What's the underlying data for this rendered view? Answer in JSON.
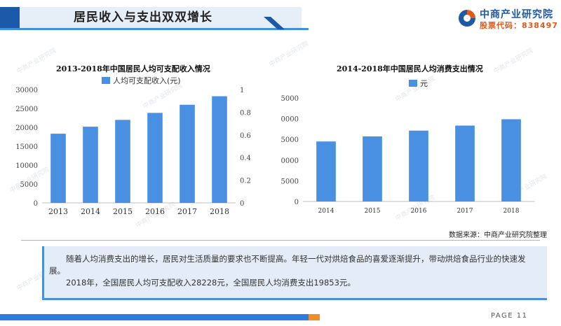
{
  "header": {
    "title": "居民收入与支出双双增长"
  },
  "logo": {
    "name": "中商产业研究院",
    "code": "股票代码：838497"
  },
  "watermark": "中商产业研究院",
  "colors": {
    "accent": "#1a5aa8",
    "bar": "#4a90e2",
    "code": "#e05a1c"
  },
  "chart_data": [
    {
      "type": "bar",
      "title": "2013-2018年中国居民人均可支配收入情况",
      "categories": [
        "2013",
        "2014",
        "2015",
        "2016",
        "2017",
        "2018"
      ],
      "series": [
        {
          "name": "人均可支配收入(元)",
          "values": [
            18311,
            20167,
            21966,
            23821,
            25974,
            28228
          ]
        }
      ],
      "ylim": [
        0,
        30000
      ],
      "yticks": [
        "0",
        "5000",
        "10000",
        "15000",
        "20000",
        "25000",
        "30000"
      ],
      "y2ticks": [
        "0",
        "0.2",
        "0.4",
        "0.6",
        "0.8",
        "1"
      ],
      "legend": "top"
    },
    {
      "type": "bar",
      "title": "2014-2018年中国居民人均消费支出情况",
      "categories": [
        "2014",
        "2015",
        "2016",
        "2017",
        "2018"
      ],
      "series": [
        {
          "name": "元",
          "values": [
            14491,
            15712,
            17111,
            18322,
            19853
          ]
        }
      ],
      "ylim": [
        0,
        25000
      ],
      "yticks": [
        "0",
        "5000",
        "10000",
        "15000",
        "20000",
        "25000"
      ],
      "legend": "top"
    }
  ],
  "source": "数据来源：中商产业研究院整理",
  "summary": {
    "p1": "随着人均消费支出的增长，居民对生活质量的要求也不断提高。年轻一代对烘焙食品的喜爱逐渐提升，带动烘焙食品行业的快速发展。",
    "p2": "2018年，全国居民人均可支配收入28228元，全国居民人均消费支出19853元。"
  },
  "footer": {
    "page": "PAGE 11"
  }
}
